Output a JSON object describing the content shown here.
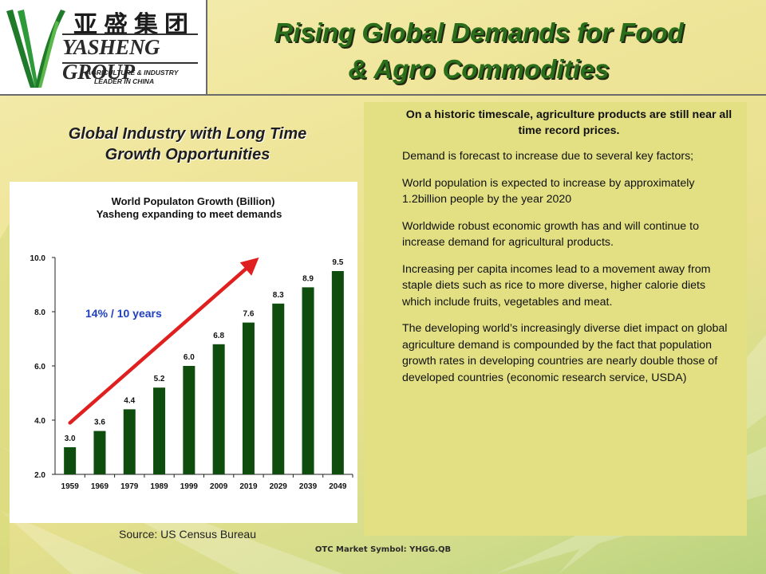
{
  "logo": {
    "chinese_name": "亚盛集团",
    "english_name": "YASHENG GROUP",
    "tagline_1": "AGRICULTURE & INDUSTRY",
    "tagline_2": "LEADER IN CHINA"
  },
  "title": {
    "line1": "Rising Global Demands for Food",
    "line2": "& Agro Commodities"
  },
  "subtitle": {
    "line1": "Global Industry with Long Time",
    "line2": "Growth Opportunities"
  },
  "chart_data": {
    "type": "bar",
    "title_line1": "World Populaton Growth (Billion)",
    "title_line2": "Yasheng expanding to meet demands",
    "categories": [
      "1959",
      "1969",
      "1979",
      "1989",
      "1999",
      "2009",
      "2019",
      "2029",
      "2039",
      "2049"
    ],
    "values": [
      3.0,
      3.6,
      4.4,
      5.2,
      6.0,
      6.8,
      7.6,
      8.3,
      8.9,
      9.5
    ],
    "value_labels": [
      "3.0",
      "3.6",
      "4.4",
      "5.2",
      "6.0",
      "6.8",
      "7.6",
      "8.3",
      "8.9",
      "9.5"
    ],
    "ylim": [
      2.0,
      10.0
    ],
    "yticks": [
      2.0,
      4.0,
      6.0,
      8.0,
      10.0
    ],
    "ytick_labels": [
      "2.0",
      "4.0",
      "6.0",
      "8.0",
      "10.0"
    ],
    "grid": false,
    "legend": "none",
    "annotation": "14% / 10 years",
    "trend_arrow": {
      "from": {
        "x": "1959",
        "y": 3.9
      },
      "to": {
        "x": "2019",
        "y": 10.0
      }
    },
    "colors": {
      "bar": "#0e4d0e",
      "arrow": "#e01f1f",
      "annotation": "#1f3fbf"
    }
  },
  "source": "Source: US Census Bureau",
  "panel": {
    "lead": "On a historic timescale, agriculture products are still near all time record prices.",
    "paragraphs": [
      "Demand is forecast to increase due to several key factors;",
      "World population is expected to increase by approximately 1.2billion people by the year 2020",
      "Worldwide robust economic growth has and will continue to increase demand for agricultural products.",
      "Increasing per capita incomes lead to a movement away from staple diets such as rice to more diverse, higher calorie diets which include fruits, vegetables and meat.",
      "The developing world’s increasingly diverse diet impact on global agriculture demand is compounded by the fact that population growth rates in developing countries are nearly double those of developed countries (economic research service, USDA)"
    ]
  },
  "footer": "OTC Market Symbol: YHGG.QB",
  "colors": {
    "title": "#2a6e1c",
    "panel_bg": "#e2e083",
    "logo_green": "#1f7a2a"
  }
}
